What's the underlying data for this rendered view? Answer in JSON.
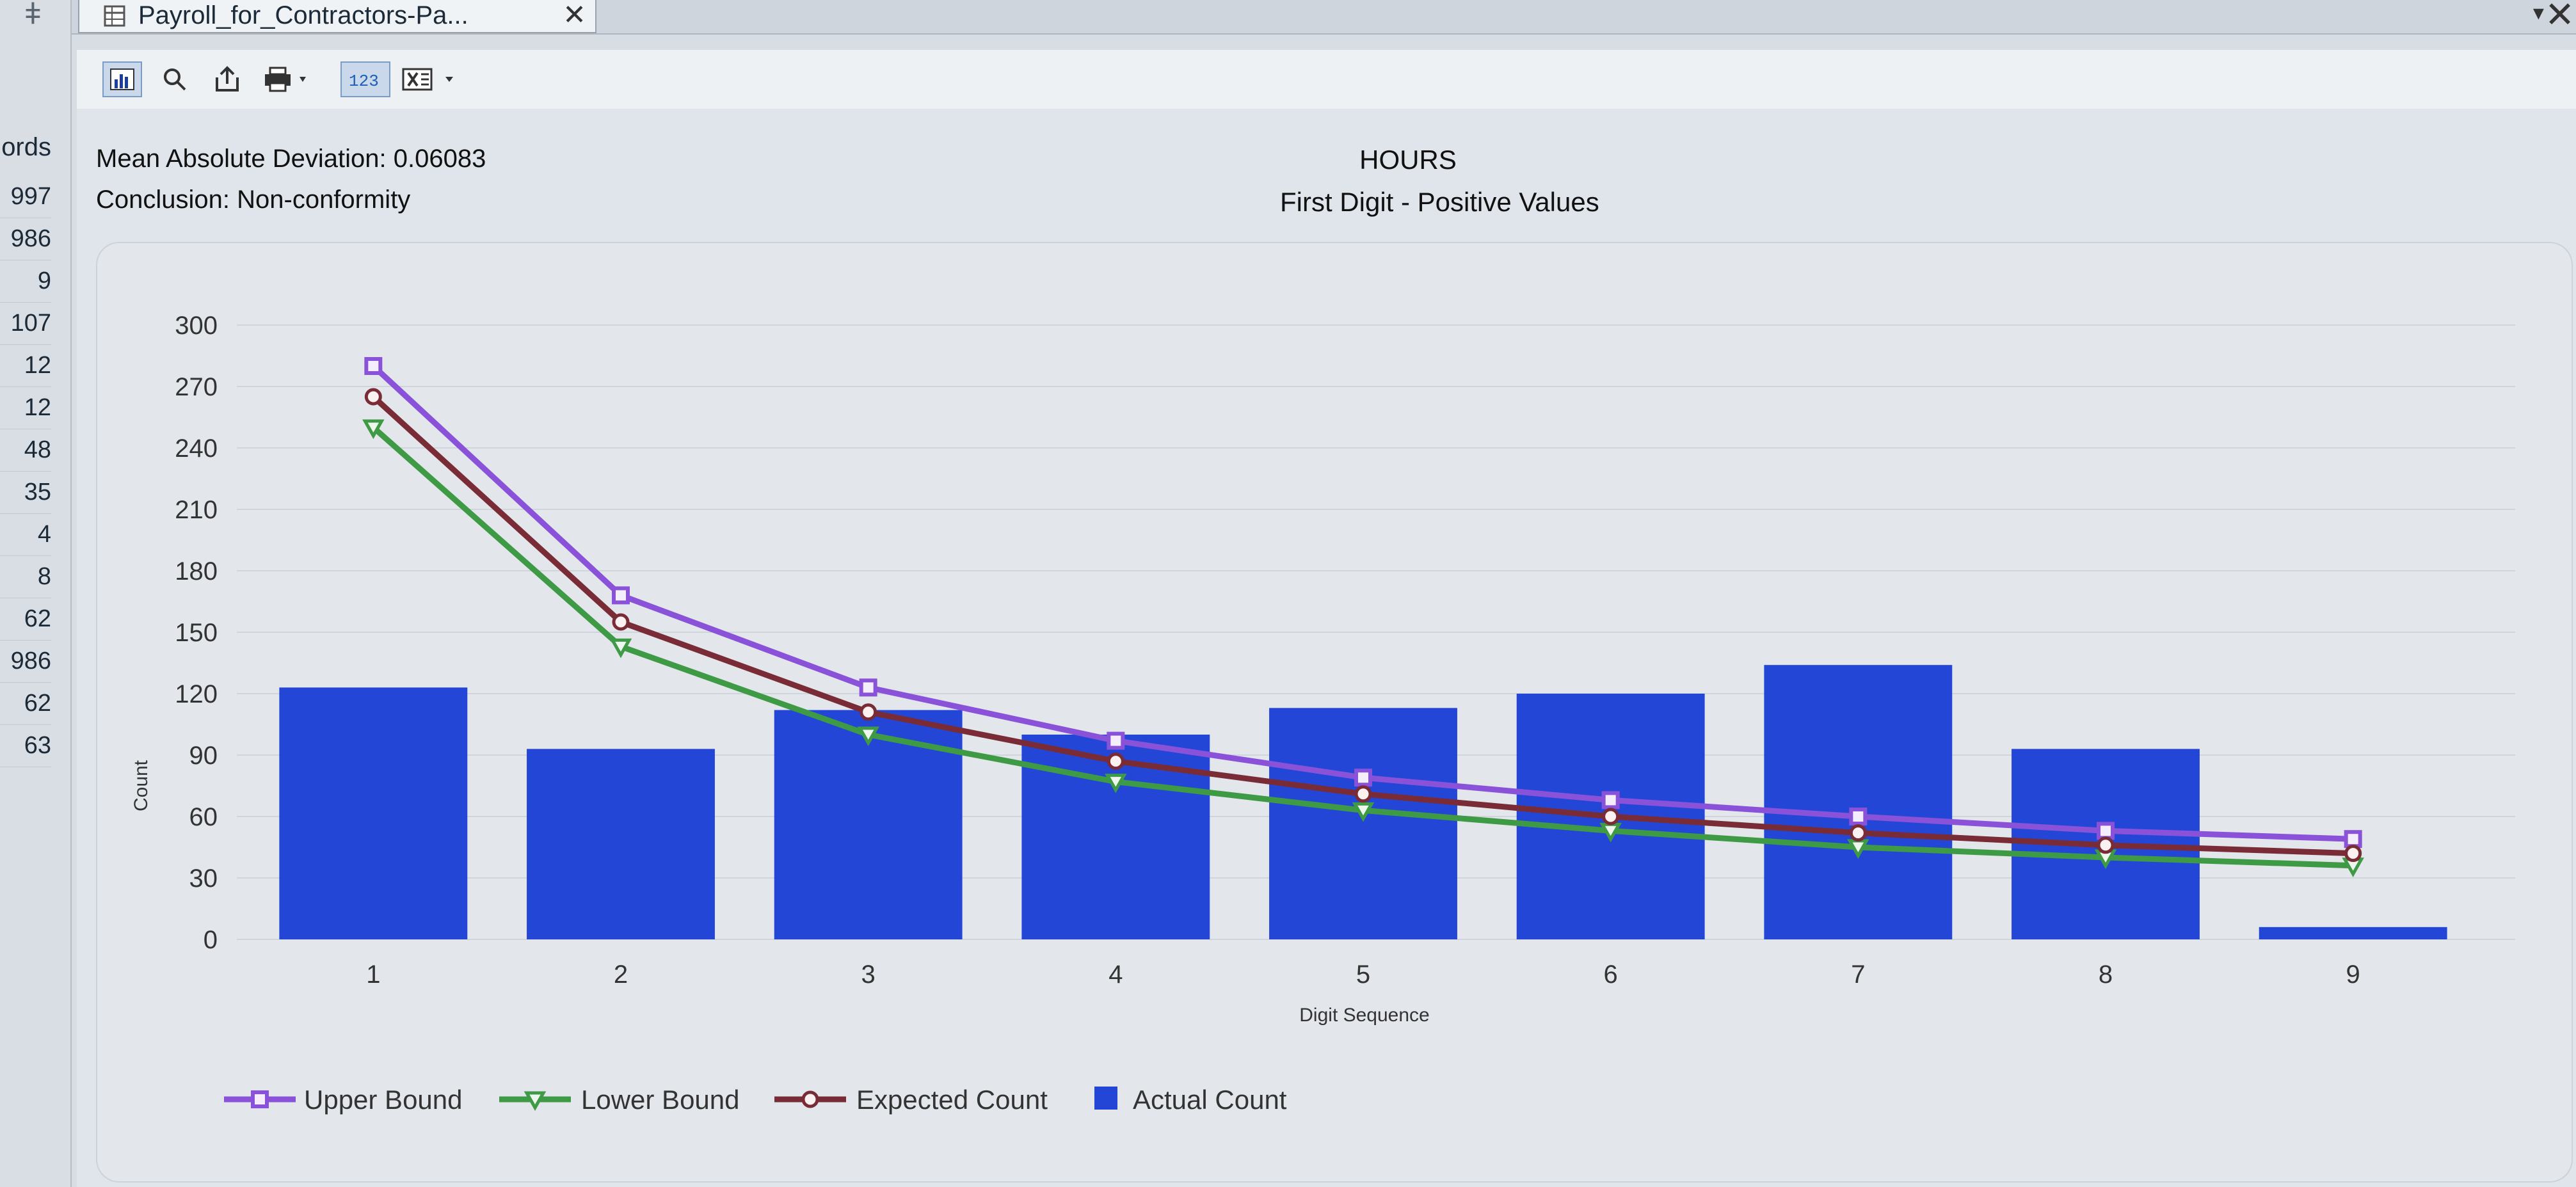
{
  "left_strip": {
    "header": "ords",
    "values": [
      "997",
      "986",
      "9",
      "107",
      "12",
      "12",
      "48",
      "35",
      "4",
      "8",
      "62",
      "986",
      "62",
      "63"
    ]
  },
  "tab": {
    "title": "Payroll_for_Contractors-Pa..."
  },
  "toolbar": {
    "icons": [
      "bar-chart-icon",
      "search-icon",
      "export-icon",
      "print-icon",
      "number-format-icon",
      "excel-icon"
    ]
  },
  "stats": {
    "mad_label": "Mean Absolute Deviation: 0.06083",
    "conclusion_label": "Conclusion: Non-conformity"
  },
  "colors": {
    "actual": "#2446d6",
    "upper": "#8a52d8",
    "lower": "#3f9a45",
    "expected": "#7a2c36"
  },
  "chart_data": {
    "type": "bar",
    "title": "HOURS",
    "subtitle": "First Digit - Positive Values",
    "xlabel": "Digit Sequence",
    "ylabel": "Count",
    "ylim": [
      0,
      300
    ],
    "y_ticks": [
      0,
      30,
      60,
      90,
      120,
      150,
      180,
      210,
      240,
      270,
      300
    ],
    "grid": true,
    "legend_position": "bottom-left",
    "categories": [
      "1",
      "2",
      "3",
      "4",
      "5",
      "6",
      "7",
      "8",
      "9"
    ],
    "series": [
      {
        "name": "Actual Count",
        "kind": "bar",
        "values": [
          123,
          93,
          112,
          100,
          113,
          120,
          134,
          93,
          6
        ]
      },
      {
        "name": "Upper Bound",
        "kind": "line",
        "marker": "square",
        "values": [
          280,
          168,
          123,
          97,
          79,
          68,
          60,
          53,
          49
        ]
      },
      {
        "name": "Lower Bound",
        "kind": "line",
        "marker": "triangle-down",
        "values": [
          250,
          143,
          100,
          77,
          63,
          53,
          45,
          40,
          36
        ]
      },
      {
        "name": "Expected Count",
        "kind": "line",
        "marker": "circle",
        "values": [
          265,
          155,
          111,
          87,
          71,
          60,
          52,
          46,
          42
        ]
      }
    ]
  }
}
